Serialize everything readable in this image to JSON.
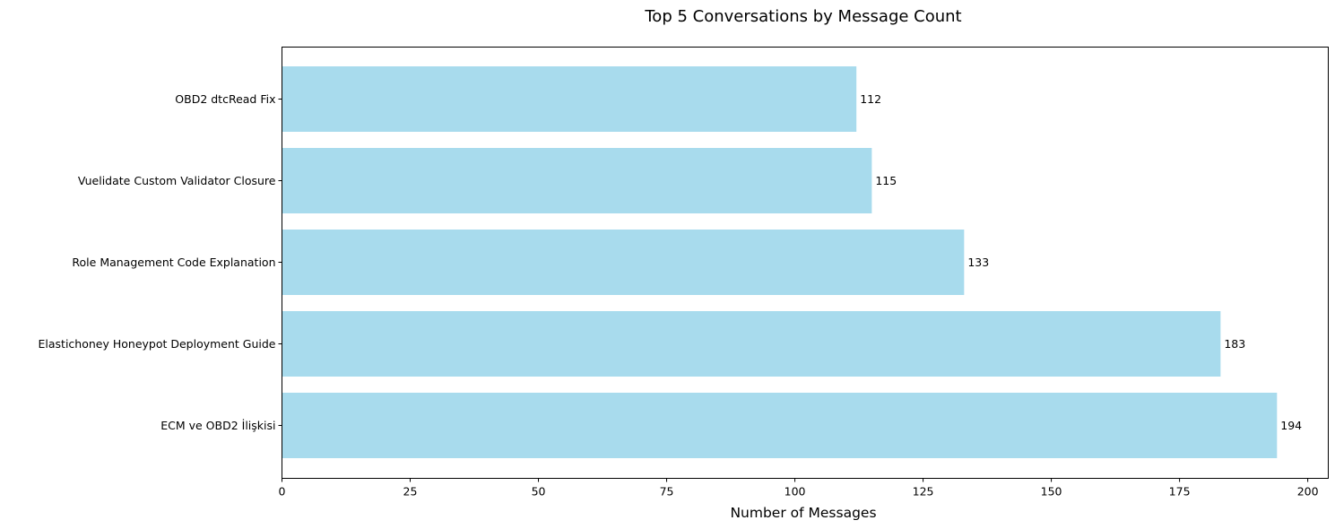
{
  "chart_data": {
    "type": "bar",
    "orientation": "horizontal",
    "title": "Top 5 Conversations by Message Count",
    "xlabel": "Number of Messages",
    "ylabel": "",
    "categories": [
      "ECM ve OBD2 İlişkisi",
      "Elastichoney Honeypot Deployment Guide",
      "Role Management Code Explanation",
      "Vuelidate Custom Validator Closure",
      "OBD2 dtcRead Fix"
    ],
    "values": [
      194,
      183,
      133,
      115,
      112
    ],
    "xlim": [
      0,
      204
    ],
    "xticks": [
      0,
      25,
      50,
      75,
      100,
      125,
      150,
      175,
      200
    ],
    "bar_color": "#a8dbed",
    "grid": false,
    "legend": "none"
  }
}
